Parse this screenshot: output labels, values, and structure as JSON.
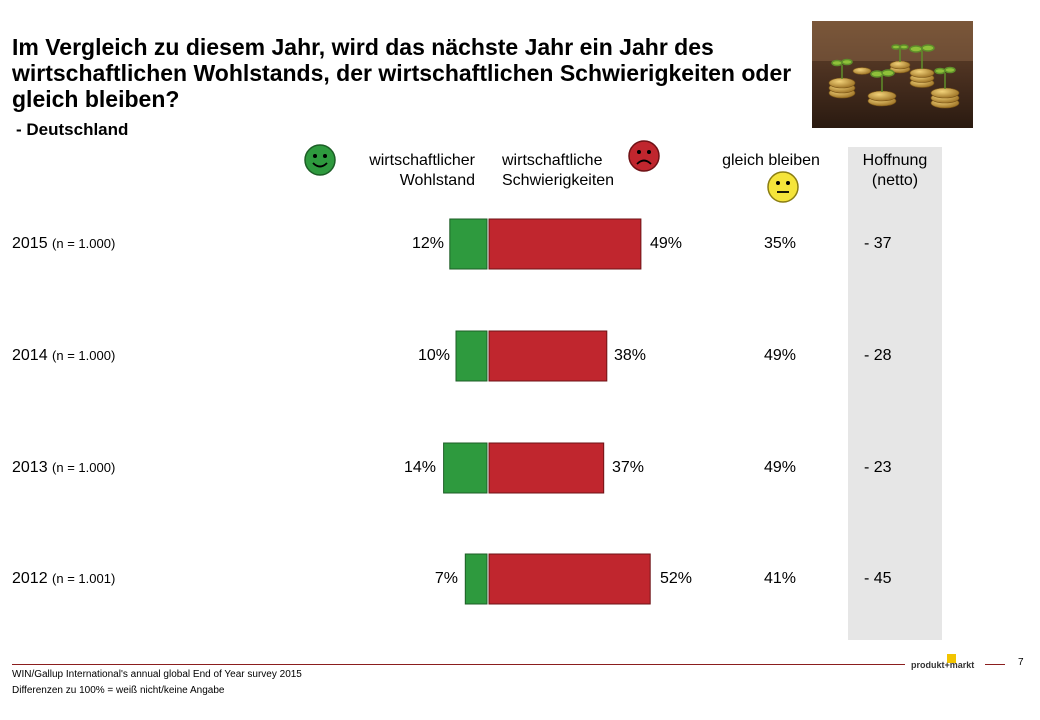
{
  "title": "Im Vergleich zu diesem Jahr, wird das nächste Jahr ein Jahr des wirtschaftlichen Wohlstands, der wirtschaftlichen Schwierigkeiten oder gleich bleiben?",
  "subtitle": "- Deutschland",
  "headers": {
    "wohlstand_line1": "wirtschaftlicher",
    "wohlstand_line2": "Wohlstand",
    "schwierig_line1": "wirtschaftliche",
    "schwierig_line2": "Schwierigkeiten",
    "gleich": "gleich bleiben",
    "netto_line1": "Hoffnung",
    "netto_line2": "(netto)"
  },
  "rows": [
    {
      "year": "2015",
      "n": "(n = 1.000)",
      "wohlstand_label": "12%",
      "schwierig_label": "49%",
      "gleich_label": "35%",
      "netto_label": "- 37"
    },
    {
      "year": "2014",
      "n": "(n = 1.000)",
      "wohlstand_label": "10%",
      "schwierig_label": "38%",
      "gleich_label": "49%",
      "netto_label": "- 28"
    },
    {
      "year": "2013",
      "n": "(n = 1.000)",
      "wohlstand_label": "14%",
      "schwierig_label": "37%",
      "gleich_label": "49%",
      "netto_label": "- 23"
    },
    {
      "year": "2012",
      "n": "(n = 1.001)",
      "wohlstand_label": "7%",
      "schwierig_label": "52%",
      "gleich_label": "41%",
      "netto_label": "- 45"
    }
  ],
  "chart_data": {
    "type": "bar",
    "orientation": "horizontal-diverging",
    "categories": [
      "2015",
      "2014",
      "2013",
      "2012"
    ],
    "series": [
      {
        "name": "wirtschaftlicher Wohlstand",
        "values": [
          12,
          10,
          14,
          7
        ],
        "color": "#2e9a3e"
      },
      {
        "name": "wirtschaftliche Schwierigkeiten",
        "values": [
          49,
          38,
          37,
          52
        ],
        "color": "#c0262e"
      },
      {
        "name": "gleich bleiben",
        "values": [
          35,
          49,
          49,
          41
        ]
      }
    ],
    "netto": [
      -37,
      -28,
      -23,
      -45
    ],
    "unit": "%"
  },
  "icons": {
    "happy": "smiley-happy-icon",
    "sad": "smiley-sad-icon",
    "neutral": "smiley-neutral-icon"
  },
  "logo_text": "produkt+markt",
  "page_number": "7",
  "source": "WIN/Gallup International's annual global End of Year survey 2015",
  "note": "Differenzen zu 100% = weiß nicht/keine Angabe"
}
